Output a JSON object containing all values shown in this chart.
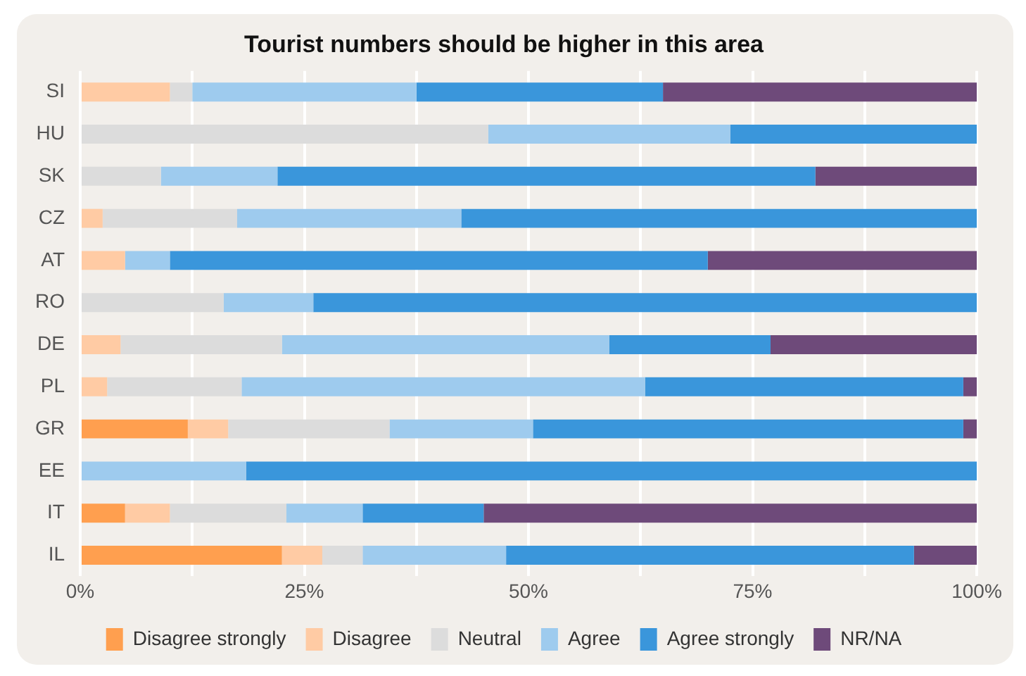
{
  "chart_data": {
    "type": "bar",
    "orientation": "horizontal",
    "stacked": true,
    "title": "Tourist numbers should be higher in this area",
    "categories": [
      "SI",
      "HU",
      "SK",
      "CZ",
      "AT",
      "RO",
      "DE",
      "PL",
      "GR",
      "EE",
      "IT",
      "IL"
    ],
    "series": [
      {
        "name": "Disagree strongly",
        "color": "#ff9f4f",
        "values": [
          0,
          0,
          0,
          0,
          0,
          0,
          0,
          0,
          12,
          0,
          5,
          22.5
        ]
      },
      {
        "name": "Disagree",
        "color": "#ffcba4",
        "values": [
          10,
          0,
          0,
          2.5,
          5,
          0,
          4.5,
          3,
          4.5,
          0,
          5,
          4.5
        ]
      },
      {
        "name": "Neutral",
        "color": "#dcdcdc",
        "values": [
          2.5,
          45.5,
          9,
          15,
          0,
          16,
          18,
          15,
          18,
          0,
          13,
          4.5
        ]
      },
      {
        "name": "Agree",
        "color": "#9ecbee",
        "values": [
          25,
          27,
          13,
          25,
          5,
          10,
          36.5,
          45,
          16,
          18.5,
          8.5,
          16
        ]
      },
      {
        "name": "Agree strongly",
        "color": "#3a96db",
        "values": [
          27.5,
          27.5,
          60,
          57.5,
          60,
          74,
          18,
          35.5,
          48,
          81.5,
          13.5,
          45.5
        ]
      },
      {
        "name": "NR/NA",
        "color": "#6e4a7a",
        "values": [
          35,
          0,
          18,
          0,
          30,
          0,
          23,
          1.5,
          1.5,
          0,
          55,
          7
        ]
      }
    ],
    "xlim": [
      0,
      100
    ],
    "xticks": [
      {
        "value": 0,
        "label": "0%"
      },
      {
        "value": 12.5,
        "label": null
      },
      {
        "value": 25,
        "label": "25%"
      },
      {
        "value": 37.5,
        "label": null
      },
      {
        "value": 50,
        "label": "50%"
      },
      {
        "value": 62.5,
        "label": null
      },
      {
        "value": 75,
        "label": "75%"
      },
      {
        "value": 87.5,
        "label": null
      },
      {
        "value": 100,
        "label": "100%"
      }
    ],
    "grid": "x",
    "legend": "bottom"
  }
}
